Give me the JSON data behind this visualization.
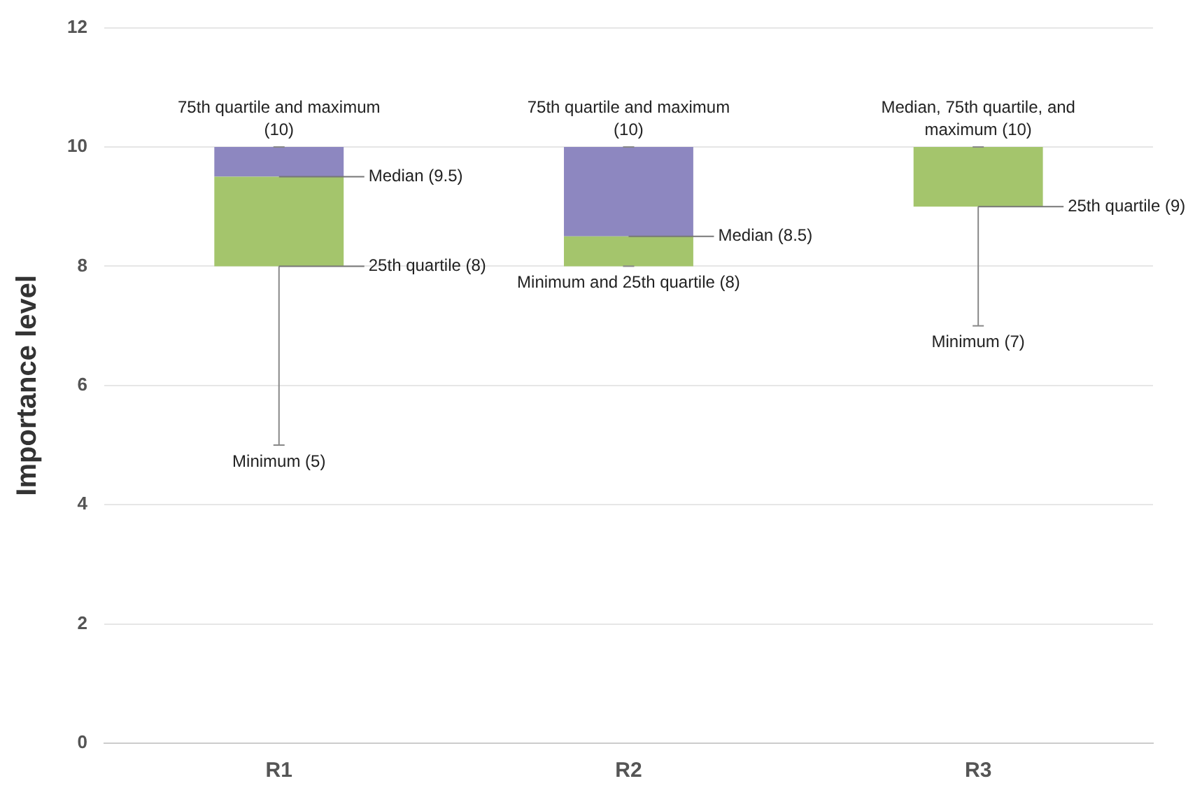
{
  "chart_data": {
    "type": "box",
    "ylabel": "Importance level",
    "categories": [
      "R1",
      "R2",
      "R3"
    ],
    "boxes": [
      {
        "low": 5,
        "q1": 8,
        "median": 9.5,
        "q3": 10,
        "high": 10
      },
      {
        "low": 8,
        "q1": 8,
        "median": 8.5,
        "q3": 10,
        "high": 10
      },
      {
        "low": 7,
        "q1": 9,
        "median": 10,
        "q3": 10,
        "high": 10
      }
    ],
    "colors": [
      "#a4c56c",
      "#a4c56c",
      "#a4c56c"
    ],
    "ylim": [
      0,
      12
    ],
    "yticks": [
      0,
      2,
      4,
      6,
      8,
      10,
      12
    ],
    "grid": "y",
    "legend": false,
    "annotations": [
      {
        "text": "75th quartile and maximum (10)",
        "x": "R1",
        "y": 10
      },
      {
        "text": "Median (9.5)",
        "x": "R1",
        "y": 9.5
      },
      {
        "text": "25th quartile (8)",
        "x": "R1",
        "y": 8
      },
      {
        "text": "Minimum (5)",
        "x": "R1",
        "y": 5
      },
      {
        "text": "75th quartile and maximum (10)",
        "x": "R2",
        "y": 10
      },
      {
        "text": "Median (8.5)",
        "x": "R2",
        "y": 8.5
      },
      {
        "text": "Minimum and 25th quartile (8)",
        "x": "R2",
        "y": 8
      },
      {
        "text": "Median, 75th quartile, and maximum (10)",
        "x": "R3",
        "y": 10
      },
      {
        "text": "25th quartile (9)",
        "x": "R3",
        "y": 9
      },
      {
        "text": "Minimum (7)",
        "x": "R3",
        "y": 7
      }
    ]
  }
}
